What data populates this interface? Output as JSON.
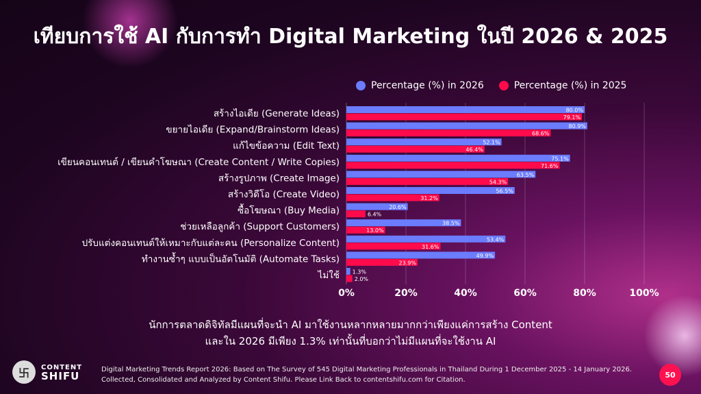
{
  "title": "เทียบการใช้ AI กับการทำ Digital Marketing ในปี 2026 & 2025",
  "watermark": "CONTENT SHIFU",
  "chart_data": {
    "type": "bar",
    "orientation": "horizontal",
    "categories": [
      "สร้างไอเดีย (Generate Ideas)",
      "ขยายไอเดีย (Expand/Brainstorm Ideas)",
      "แก้ไขข้อความ (Edit Text)",
      "เขียนคอนเทนต์ / เขียนคำโฆษณา (Create Content / Write Copies)",
      "สร้างรูปภาพ (Create Image)",
      "สร้างวิดีโอ (Create Video)",
      "ซื้อโฆษณา (Buy Media)",
      "ช่วยเหลือลูกค้า (Support Customers)",
      "ปรับแต่งคอนเทนต์ให้เหมาะกับแต่ละคน (Personalize Content)",
      "ทำงานซ้ำๆ แบบเป็นอัตโนมัติ (Automate Tasks)",
      "ไม่ใช้"
    ],
    "series": [
      {
        "name": "Percentage (%) in 2026",
        "color": "#6b7cff",
        "values": [
          80.0,
          80.9,
          52.1,
          75.1,
          63.5,
          56.5,
          20.6,
          38.5,
          53.4,
          49.9,
          1.3
        ],
        "labels": [
          "80.0%",
          "80.9%",
          "52.1%",
          "75.1%",
          "63.5%",
          "56.5%",
          "20.6%",
          "38.5%",
          "53.4%",
          "49.9%",
          "1.3%"
        ]
      },
      {
        "name": "Percentage (%) in 2025",
        "color": "#ff0a4a",
        "values": [
          79.1,
          68.6,
          46.4,
          71.6,
          54.3,
          31.2,
          6.4,
          13.0,
          31.6,
          23.9,
          2.0
        ],
        "labels": [
          "79.1%",
          "68.6%",
          "46.4%",
          "71.6%",
          "54.3%",
          "31.2%",
          "6.4%",
          "13.0%",
          "31.6%",
          "23.9%",
          "2.0%"
        ]
      }
    ],
    "xlim": [
      0,
      100
    ],
    "xticks": [
      "0%",
      "20%",
      "40%",
      "60%",
      "80%",
      "100%"
    ],
    "grid": true,
    "legend": "top-right"
  },
  "note": [
    "นักการตลาดดิจิทัลมีแผนที่จะนำ AI มาใช้งานหลากหลายมากกว่าเพียงแค่การสร้าง Content",
    "และใน 2026 มีเพียง 1.3% เท่านั้นที่บอกว่าไม่มีแผนที่จะใช้งาน AI"
  ],
  "logo": {
    "top": "CONTENT",
    "bottom": "SHIFU"
  },
  "source": [
    "Digital Marketing Trends Report 2026: Based on The Survey of 545 Digital Marketing Professionals in Thailand During 1 December 2025 - 14 January 2026.",
    "Collected, Consolidated and Analyzed by Content Shifu. Please Link Back to contentshifu.com for Citation."
  ],
  "page_number": "50"
}
